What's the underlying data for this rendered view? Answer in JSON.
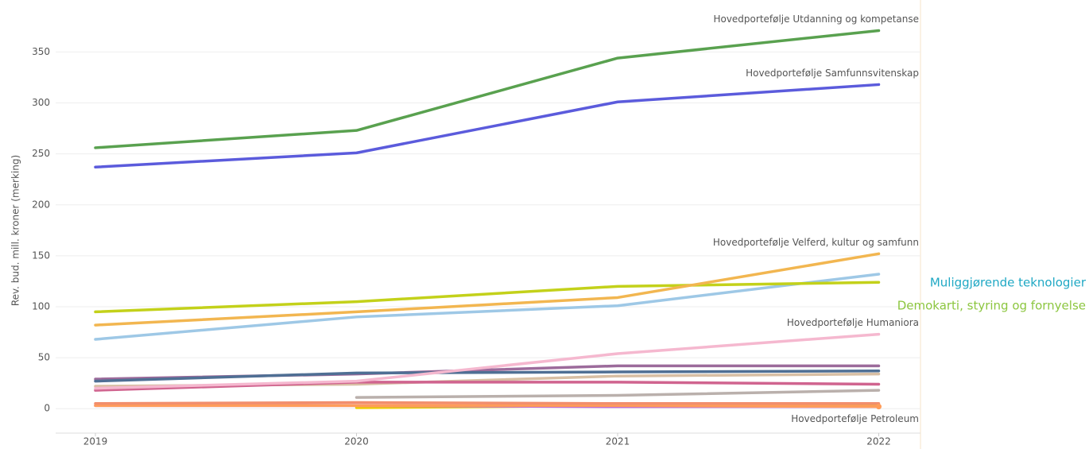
{
  "chart_data": {
    "type": "line",
    "y_label": "Rev. bud. mill. kroner (merking)",
    "categories": [
      "2019",
      "2020",
      "2021",
      "2022"
    ],
    "ylim": [
      -24,
      401
    ],
    "yticks": [
      0,
      50,
      100,
      150,
      200,
      250,
      300,
      350
    ],
    "grid": true,
    "series": [
      {
        "name": "Hovedportefølje Utdanning og kompetanse",
        "color": "#59a14f",
        "values": [
          256,
          273,
          344,
          371
        ]
      },
      {
        "name": "Hovedportefølje Samfunnsvitenskap",
        "color": "#5b5bdc",
        "values": [
          237,
          251,
          301,
          318
        ]
      },
      {
        "name": "Hovedportefølje Velferd, kultur og samfunn",
        "color": "#f2b650",
        "values": [
          82,
          95,
          109,
          152
        ]
      },
      {
        "color": "#c3d11a",
        "values": [
          95,
          105,
          120,
          124
        ]
      },
      {
        "color": "#9ec8e6",
        "values": [
          68,
          90,
          101,
          132
        ]
      },
      {
        "name": "Hovedportefølje Humaniora",
        "color": "#f5b8cf",
        "values": [
          20,
          27,
          54,
          73
        ]
      },
      {
        "color": "#4f6f94",
        "values": [
          27,
          35,
          36,
          37
        ]
      },
      {
        "color": "#9c6b9b",
        "values": [
          29,
          34,
          42,
          42
        ]
      },
      {
        "color": "#d0648f",
        "values": [
          18,
          26,
          26,
          24
        ]
      },
      {
        "color": "#d8bfa4",
        "values": [
          22,
          24,
          32,
          34
        ]
      },
      {
        "color": "#bab0ac",
        "values": [
          null,
          11,
          13,
          18
        ]
      },
      {
        "color": "#f28e6c",
        "values": [
          5,
          6,
          5,
          5
        ]
      },
      {
        "name": "Hovedportefølje Petroleum",
        "color": "#ff9d5a",
        "values": [
          3,
          3,
          3,
          2
        ]
      },
      {
        "color": "#b55fd6",
        "values": [
          3,
          3,
          2,
          2
        ]
      },
      {
        "color": "#f1ce00",
        "values": [
          null,
          1,
          3,
          3
        ]
      }
    ],
    "annotations": [
      {
        "text": "Muliggjørende teknologier",
        "color": "#1fa8c4"
      },
      {
        "text": "Demokarti, styring og fornyelse",
        "color": "#8cc63f"
      }
    ]
  }
}
